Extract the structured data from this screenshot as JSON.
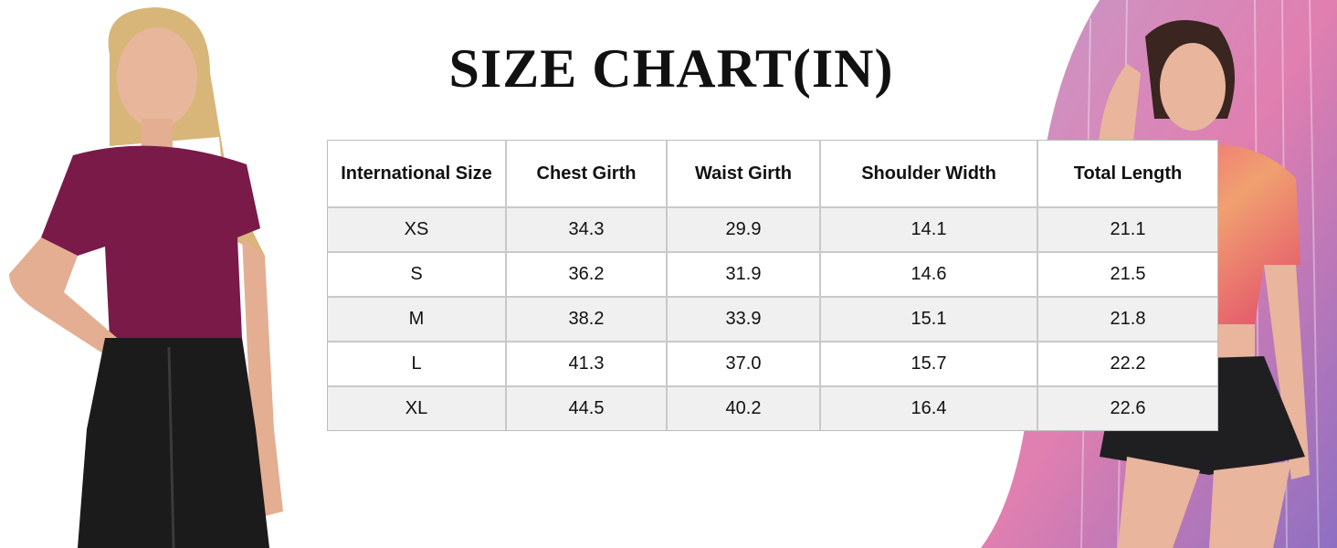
{
  "header": {
    "title": "SIZE CHART(IN)"
  },
  "table": {
    "columns": [
      "International Size",
      "Chest Girth",
      "Waist Girth",
      "Shoulder Width",
      "Total Length"
    ],
    "rows": [
      [
        "XS",
        "34.3",
        "29.9",
        "14.1",
        "21.1"
      ],
      [
        "S",
        "36.2",
        "31.9",
        "14.6",
        "21.5"
      ],
      [
        "M",
        "38.2",
        "33.9",
        "15.1",
        "21.8"
      ],
      [
        "L",
        "41.3",
        "37.0",
        "15.7",
        "22.2"
      ],
      [
        "XL",
        "44.5",
        "40.2",
        "16.4",
        "22.6"
      ]
    ]
  }
}
